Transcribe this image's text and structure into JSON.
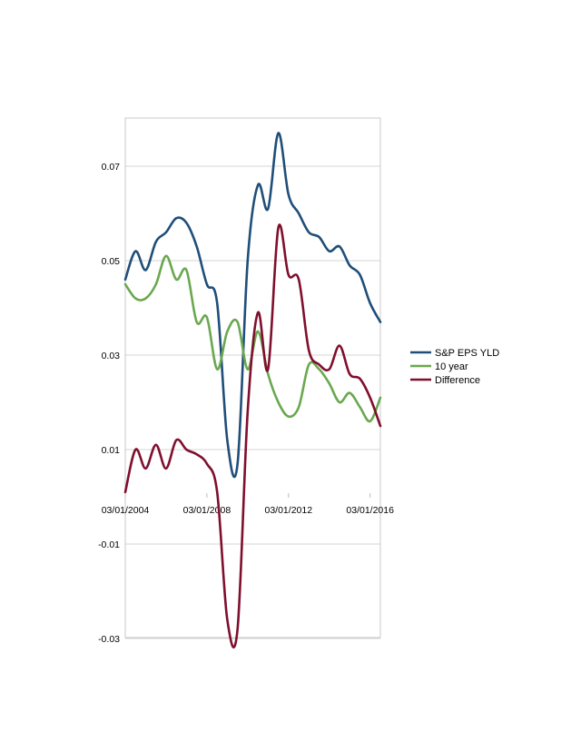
{
  "chart_data": {
    "type": "line",
    "title": "",
    "xlabel": "",
    "ylabel": "",
    "x_tick_labels": [
      "03/01/2004",
      "03/01/2008",
      "03/01/2012",
      "03/01/2016"
    ],
    "y_ticks": [
      0.07,
      0.05,
      0.03,
      0.01,
      -0.01,
      -0.03
    ],
    "y_tick_labels": [
      "0.07",
      "0.05",
      "0.03",
      "0.01",
      "-0.01",
      "-0.03"
    ],
    "ylim": [
      -0.03,
      0.08
    ],
    "xlim": [
      "2004-03-01",
      "2016-09-01"
    ],
    "grid": "horizontal",
    "legend_position": "right",
    "x": [
      "2004-03-01",
      "2004-09-01",
      "2005-03-01",
      "2005-09-01",
      "2006-03-01",
      "2006-09-01",
      "2007-03-01",
      "2007-09-01",
      "2008-03-01",
      "2008-09-01",
      "2009-03-01",
      "2009-09-01",
      "2010-03-01",
      "2010-09-01",
      "2011-03-01",
      "2011-09-01",
      "2012-03-01",
      "2012-09-01",
      "2013-03-01",
      "2013-09-01",
      "2014-03-01",
      "2014-09-01",
      "2015-03-01",
      "2015-09-01",
      "2016-03-01",
      "2016-09-01"
    ],
    "series": [
      {
        "name": "S&P EPS YLD",
        "color": "#1f4e79",
        "values": [
          0.046,
          0.052,
          0.048,
          0.054,
          0.056,
          0.059,
          0.058,
          0.053,
          0.045,
          0.041,
          0.012,
          0.007,
          0.05,
          0.066,
          0.061,
          0.077,
          0.064,
          0.06,
          0.056,
          0.055,
          0.052,
          0.053,
          0.049,
          0.047,
          0.041,
          0.037
        ]
      },
      {
        "name": "10 year",
        "color": "#6aa84f",
        "values": [
          0.045,
          0.042,
          0.042,
          0.045,
          0.051,
          0.046,
          0.048,
          0.037,
          0.038,
          0.027,
          0.035,
          0.037,
          0.027,
          0.035,
          0.026,
          0.02,
          0.017,
          0.019,
          0.028,
          0.027,
          0.024,
          0.02,
          0.022,
          0.019,
          0.016,
          0.021
        ]
      },
      {
        "name": "Difference",
        "color": "#7f0f2e",
        "values": [
          0.001,
          0.01,
          0.006,
          0.011,
          0.006,
          0.012,
          0.01,
          0.009,
          0.007,
          0.001,
          -0.026,
          -0.028,
          0.018,
          0.039,
          0.027,
          0.057,
          0.047,
          0.046,
          0.031,
          0.028,
          0.027,
          0.032,
          0.026,
          0.025,
          0.021,
          0.015
        ]
      }
    ]
  }
}
